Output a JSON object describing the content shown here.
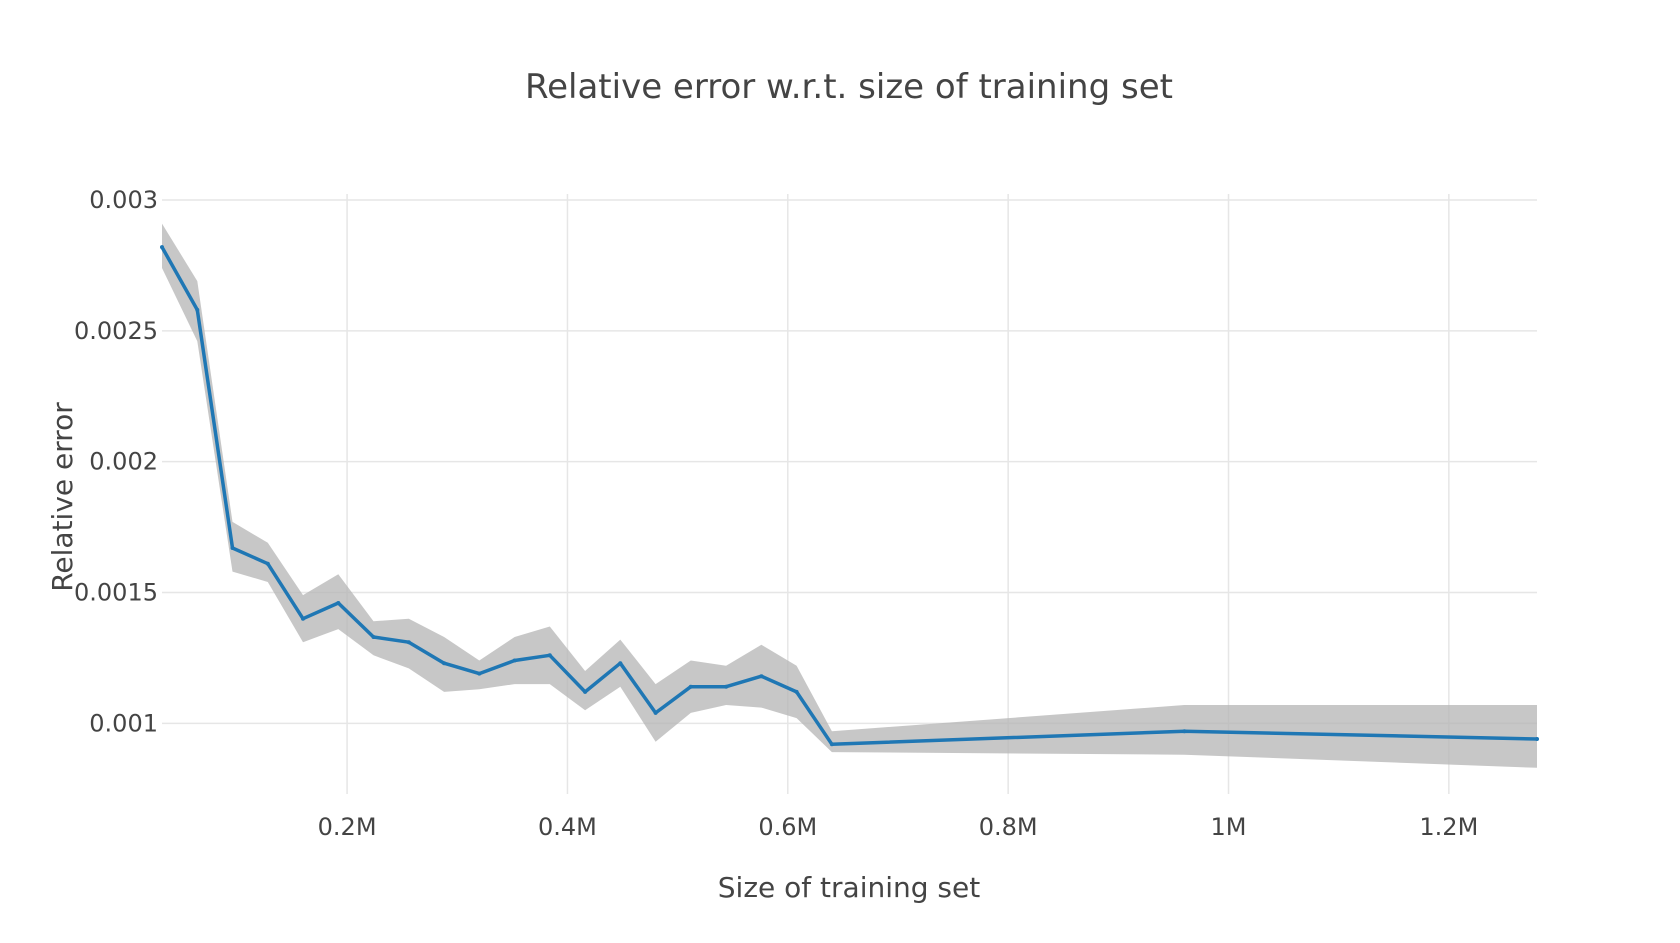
{
  "chart_data": {
    "type": "line",
    "title": "Relative error w.r.t. size of training set",
    "xlabel": "Size of training set",
    "ylabel": "Relative error",
    "xlim": [
      32000,
      1280000
    ],
    "ylim": [
      0.00073,
      0.003
    ],
    "x_ticks": [
      {
        "value": 200000,
        "label": "0.2M"
      },
      {
        "value": 400000,
        "label": "0.4M"
      },
      {
        "value": 600000,
        "label": "0.6M"
      },
      {
        "value": 800000,
        "label": "0.8M"
      },
      {
        "value": 1000000,
        "label": "1M"
      },
      {
        "value": 1200000,
        "label": "1.2M"
      }
    ],
    "y_ticks": [
      {
        "value": 0.001,
        "label": "0.001"
      },
      {
        "value": 0.0015,
        "label": "0.0015"
      },
      {
        "value": 0.002,
        "label": "0.002"
      },
      {
        "value": 0.0025,
        "label": "0.0025"
      },
      {
        "value": 0.003,
        "label": "0.003"
      }
    ],
    "grid": true,
    "legend": "none",
    "colors": {
      "line": "#1f77b4",
      "band": "#b4b4b4",
      "grid": "#e6e6e6",
      "text": "#444444"
    },
    "x": [
      32000,
      64000,
      96000,
      128000,
      160000,
      192000,
      224000,
      256000,
      288000,
      320000,
      352000,
      384000,
      416000,
      448000,
      480000,
      512000,
      544000,
      576000,
      608000,
      640000,
      960000,
      1280000
    ],
    "series": [
      {
        "values": [
          0.00282,
          0.00258,
          0.00167,
          0.00161,
          0.0014,
          0.00146,
          0.00133,
          0.00131,
          0.00123,
          0.00119,
          0.00124,
          0.00126,
          0.00112,
          0.00123,
          0.00104,
          0.00114,
          0.00114,
          0.00118,
          0.00112,
          0.00092,
          0.00097,
          0.00094
        ],
        "upper": [
          0.00291,
          0.00269,
          0.00177,
          0.00169,
          0.00149,
          0.00157,
          0.00139,
          0.0014,
          0.00133,
          0.00124,
          0.00133,
          0.00137,
          0.0012,
          0.00132,
          0.00115,
          0.00124,
          0.00122,
          0.0013,
          0.00122,
          0.00097,
          0.00107,
          0.00107
        ],
        "lower": [
          0.00274,
          0.00246,
          0.00158,
          0.00154,
          0.00131,
          0.00136,
          0.00126,
          0.00121,
          0.00112,
          0.00113,
          0.00115,
          0.00115,
          0.00105,
          0.00114,
          0.00093,
          0.00104,
          0.00107,
          0.00106,
          0.00102,
          0.00089,
          0.00088,
          0.00083
        ]
      }
    ]
  }
}
